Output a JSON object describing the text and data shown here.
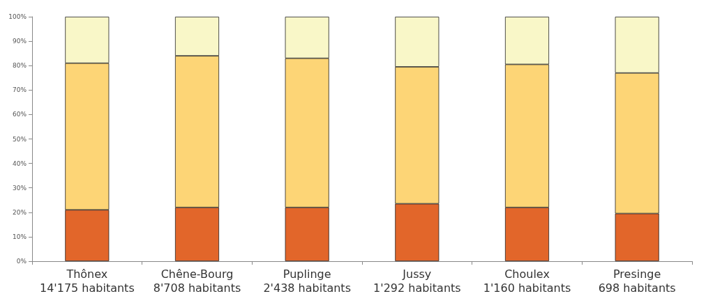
{
  "chart_data": {
    "type": "bar",
    "stacked": true,
    "categories": [
      "Thônex\n14'175 habitants",
      "Chêne-Bourg\n8'708 habitants",
      "Puplinge\n2'438 habitants",
      "Jussy\n1'292 habitants",
      "Choulex\n1'160 habitants",
      "Presinge\n698 habitants"
    ],
    "series": [
      {
        "color": "#e2662a",
        "values": [
          21,
          22,
          22,
          23.5,
          22,
          19.5
        ]
      },
      {
        "color": "#fdd576",
        "values": [
          60,
          62,
          61,
          56,
          58.5,
          57.5
        ]
      },
      {
        "color": "#f9f7c8",
        "values": [
          19,
          16,
          17,
          20.5,
          19.5,
          23
        ]
      }
    ],
    "ylim": [
      0,
      100
    ],
    "yticks": [
      {
        "value": 0,
        "label": "0%"
      },
      {
        "value": 10,
        "label": "10%"
      },
      {
        "value": 20,
        "label": "20%"
      },
      {
        "value": 30,
        "label": "30%"
      },
      {
        "value": 40,
        "label": "40%"
      },
      {
        "value": 50,
        "label": "50%"
      },
      {
        "value": 60,
        "label": "60%"
      },
      {
        "value": 70,
        "label": "70%"
      },
      {
        "value": 80,
        "label": "80%"
      },
      {
        "value": 90,
        "label": "90%"
      },
      {
        "value": 100,
        "label": "100%"
      }
    ],
    "grid": false
  }
}
